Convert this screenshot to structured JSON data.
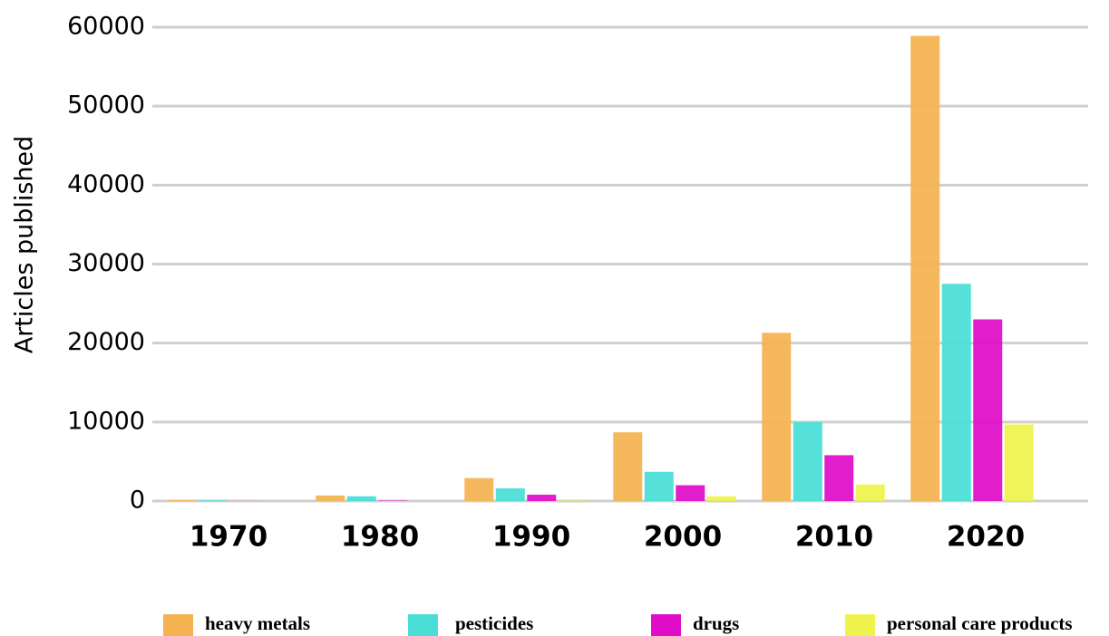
{
  "chart_data": {
    "type": "bar",
    "y_label": "Articles published",
    "categories": [
      "1970",
      "1980",
      "1990",
      "2000",
      "2010",
      "2020"
    ],
    "series": [
      {
        "name": "heavy metals",
        "color": "#f4b350",
        "values": [
          100,
          700,
          2900,
          8700,
          21300,
          58900
        ]
      },
      {
        "name": "pesticides",
        "color": "#48ded6",
        "values": [
          80,
          600,
          1600,
          3700,
          10000,
          27500
        ]
      },
      {
        "name": "drugs",
        "color": "#e00cc7",
        "values": [
          10,
          50,
          800,
          2000,
          5800,
          23000
        ]
      },
      {
        "name": "personal care products",
        "color": "#eef44c",
        "values": [
          0,
          0,
          50,
          600,
          2100,
          9700
        ]
      }
    ],
    "ylim": [
      0,
      60000
    ],
    "yticks": [
      0,
      10000,
      20000,
      30000,
      40000,
      50000,
      60000
    ],
    "grid": true,
    "legend": "bottom"
  }
}
